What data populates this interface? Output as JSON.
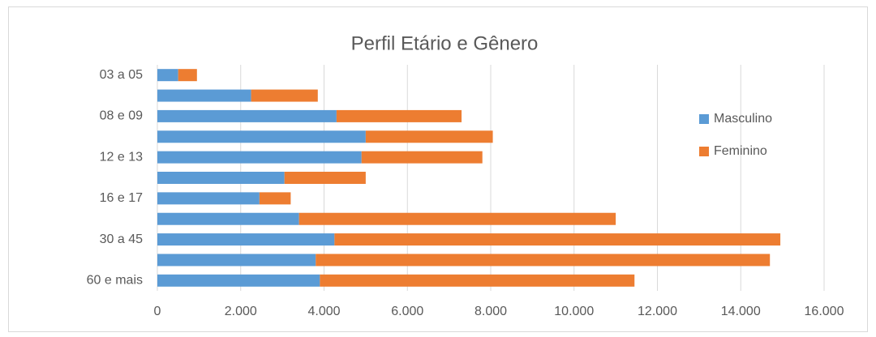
{
  "chart_data": {
    "type": "stacked-bar-horizontal",
    "title": "Perfil Etário e Gênero",
    "categories": [
      "03 a 05",
      null,
      "08 e 09",
      null,
      "12 e 13",
      null,
      "16 e 17",
      null,
      "30 a 45",
      null,
      "60 e mais"
    ],
    "series": [
      {
        "name": "Masculino",
        "color": "#5b9bd5",
        "values": [
          500,
          2250,
          4300,
          5000,
          4900,
          3050,
          2450,
          3400,
          4250,
          3800,
          3900
        ]
      },
      {
        "name": "Feminino",
        "color": "#ed7d31",
        "values": [
          450,
          1600,
          3000,
          3050,
          2900,
          1950,
          750,
          7600,
          10700,
          10900,
          7550
        ]
      }
    ],
    "xlim": [
      0,
      16000
    ],
    "xticks": [
      0,
      {
        "value": 2000,
        "label": "2.000"
      },
      {
        "value": 4000,
        "label": "4.000"
      },
      {
        "value": 6000,
        "label": "6.000"
      },
      {
        "value": 8000,
        "label": "8.000"
      },
      {
        "value": 10000,
        "label": "10.000"
      },
      {
        "value": 12000,
        "label": "12.000"
      },
      {
        "value": 14000,
        "label": "14.000"
      },
      {
        "value": 16000,
        "label": "16.000"
      }
    ],
    "grid": true,
    "legend": "right"
  }
}
